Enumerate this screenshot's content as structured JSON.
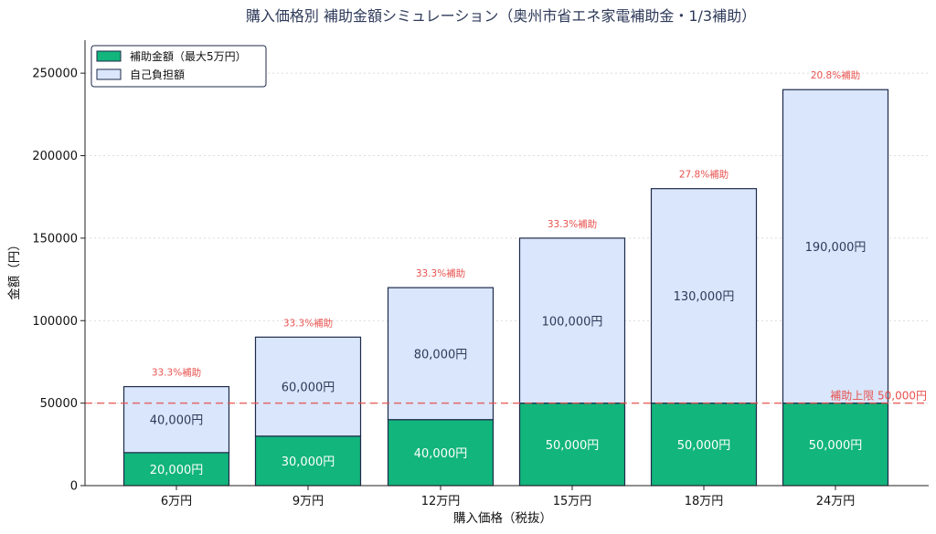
{
  "chart_data": {
    "type": "bar",
    "stacked": true,
    "title": "購入価格別 補助金額シミュレーション（奥州市省エネ家電補助金・1/3補助）",
    "xlabel": "購入価格（税抜）",
    "ylabel": "金額（円）",
    "categories": [
      "6万円",
      "9万円",
      "12万円",
      "15万円",
      "18万円",
      "24万円"
    ],
    "ylim": [
      0,
      270000
    ],
    "yticks": [
      0,
      50000,
      100000,
      150000,
      200000,
      250000
    ],
    "series": [
      {
        "name": "補助金額（最大5万円）",
        "color": "#12b57c",
        "values": [
          20000,
          30000,
          40000,
          50000,
          50000,
          50000
        ],
        "labels": [
          "20,000円",
          "30,000円",
          "40,000円",
          "50,000円",
          "50,000円",
          "50,000円"
        ]
      },
      {
        "name": "自己負担額",
        "color": "#d9e6fb",
        "values": [
          40000,
          60000,
          80000,
          100000,
          130000,
          190000
        ],
        "labels": [
          "40,000円",
          "60,000円",
          "80,000円",
          "100,000円",
          "130,000円",
          "190,000円"
        ]
      }
    ],
    "subsidy_rate_labels": [
      "33.3%補助",
      "33.3%補助",
      "33.3%補助",
      "33.3%補助",
      "27.8%補助",
      "20.8%補助"
    ],
    "reference_line": {
      "value": 50000,
      "label": "補助上限 50,000円",
      "color": "#e8524f"
    },
    "grid": "horizontal-dotted",
    "legend_position": "top-left",
    "edge_color": "#1e2a4a"
  }
}
